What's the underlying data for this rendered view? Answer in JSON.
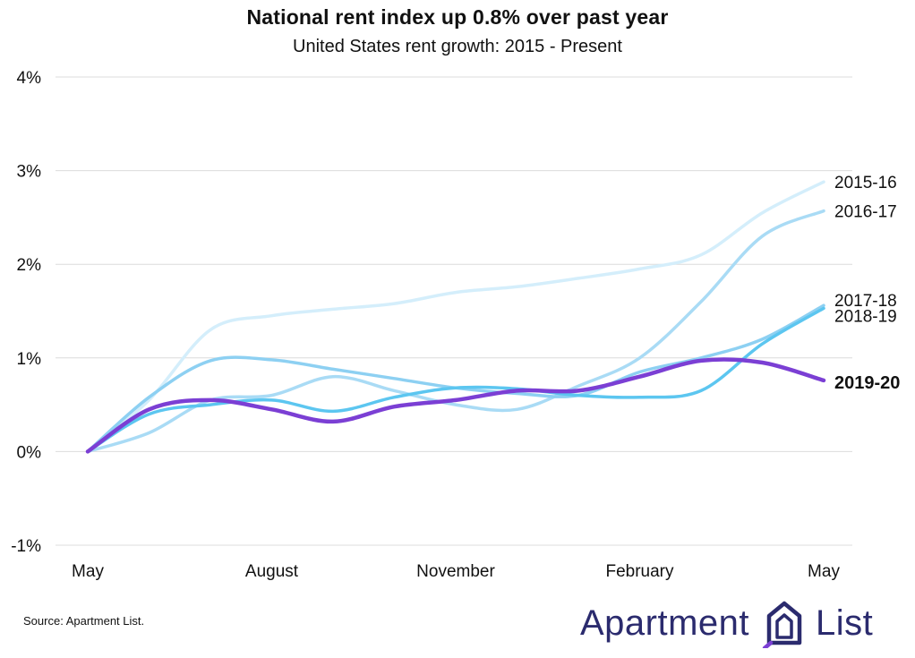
{
  "header": {
    "title": "National rent index up 0.8% over past year",
    "subtitle": "United States rent growth: 2015 - Present"
  },
  "footer": {
    "source": "Source: Apartment List.",
    "logo": {
      "word1": "Apartment",
      "word2": "List",
      "icon": "building-icon"
    }
  },
  "chart_data": {
    "type": "line",
    "title": "National rent index up 0.8% over past year",
    "subtitle": "United States rent growth: 2015 - Present",
    "xlabel": "",
    "ylabel": "",
    "x_tick_labels": [
      "May",
      "August",
      "November",
      "February",
      "May"
    ],
    "x": [
      0,
      1,
      2,
      3,
      4,
      5,
      6,
      7,
      8,
      9,
      10,
      11,
      12
    ],
    "ylim": [
      -1,
      4
    ],
    "y_ticks": [
      -1,
      0,
      1,
      2,
      3,
      4
    ],
    "y_tick_labels": [
      "-1%",
      "0%",
      "1%",
      "2%",
      "3%",
      "4%"
    ],
    "grid": true,
    "legend": "inline labels at line ends",
    "series": [
      {
        "name": "2015-16",
        "color": "#d4eefb",
        "emphasis": false,
        "values": [
          0,
          0.55,
          1.3,
          1.45,
          1.52,
          1.58,
          1.7,
          1.76,
          1.85,
          1.95,
          2.1,
          2.55,
          2.88
        ]
      },
      {
        "name": "2016-17",
        "color": "#a9dbf5",
        "emphasis": false,
        "values": [
          0,
          0.2,
          0.55,
          0.6,
          0.8,
          0.65,
          0.5,
          0.45,
          0.7,
          1.0,
          1.6,
          2.3,
          2.57
        ]
      },
      {
        "name": "2017-18",
        "color": "#8dd0f2",
        "emphasis": false,
        "values": [
          0,
          0.58,
          0.97,
          0.98,
          0.88,
          0.78,
          0.68,
          0.62,
          0.6,
          0.85,
          1.0,
          1.2,
          1.56
        ]
      },
      {
        "name": "2018-19",
        "color": "#5cc6f0",
        "emphasis": false,
        "values": [
          0,
          0.4,
          0.5,
          0.55,
          0.43,
          0.58,
          0.68,
          0.67,
          0.6,
          0.58,
          0.65,
          1.15,
          1.53
        ]
      },
      {
        "name": "2019-20",
        "color": "#7b3fd4",
        "emphasis": true,
        "values": [
          0,
          0.45,
          0.55,
          0.45,
          0.32,
          0.48,
          0.55,
          0.65,
          0.65,
          0.8,
          0.97,
          0.95,
          0.76
        ]
      }
    ]
  }
}
